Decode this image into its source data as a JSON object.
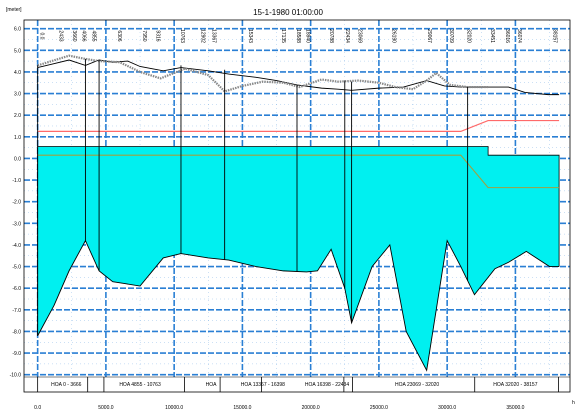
{
  "chart_data": {
    "type": "line",
    "title": "15-1-1980 01:00:00",
    "ylabel": "[meter]",
    "xlabel": "",
    "xunit_label": "h",
    "ylim": [
      -10.8,
      6.4
    ],
    "xlim": [
      -1000,
      39000
    ],
    "grid": true,
    "y_ticks": [
      6.0,
      5.0,
      4.0,
      3.0,
      2.0,
      1.0,
      0.0,
      -1.0,
      -2.0,
      -3.0,
      -4.0,
      -5.0,
      -6.0,
      -7.0,
      -8.0,
      -9.0,
      -10.0
    ],
    "y_tick_labels": [
      "6.0",
      "5.0",
      "4.0",
      "3.0",
      "2.0",
      "1.0",
      "0.0",
      "-1.0",
      "-2.0",
      "-3.0",
      "-4.0",
      "-5.0",
      "-6.0",
      "-7.0",
      "-8.0",
      "-9.0",
      "-10.0"
    ],
    "x_ticks": [
      0,
      5000,
      10000,
      15000,
      20000,
      25000,
      30000,
      35000
    ],
    "x_tick_labels": [
      "0.0",
      "5000.0",
      "10000.0",
      "15000.0",
      "20000.0",
      "25000.0",
      "30000.0",
      "35000.0"
    ],
    "colors": {
      "grid": "#2a7fd4",
      "bed_fill": "#00f0f0",
      "bed_line": "#000000",
      "bank_line": "#000000",
      "dotted_line": "#888888",
      "red_line": "#ff6a6a",
      "olive_line": "#a0a040"
    },
    "series": [
      {
        "key": "bed",
        "x": [
          0,
          1200,
          2300,
          3500,
          4500,
          5500,
          6500,
          7500,
          9200,
          10500,
          12500,
          14000,
          16000,
          18000,
          19700,
          20500,
          21500,
          22500,
          23000,
          24500,
          25800,
          27000,
          28500,
          30000,
          31000,
          32000,
          33500,
          34500,
          35800,
          37500,
          38200
        ],
        "y": [
          -8.2,
          -6.8,
          -5.2,
          -3.8,
          -5.2,
          -5.7,
          -5.8,
          -5.9,
          -4.6,
          -4.4,
          -4.6,
          -4.7,
          -5.0,
          -5.2,
          -5.25,
          -5.2,
          -4.2,
          -6.0,
          -7.6,
          -5.0,
          -4.0,
          -8.0,
          -9.8,
          -3.8,
          -5.0,
          -6.3,
          -5.1,
          -4.8,
          -4.3,
          -5.0,
          -5.0
        ]
      },
      {
        "key": "bank",
        "x": [
          0,
          1000,
          2300,
          3500,
          4500,
          5500,
          6600,
          7500,
          9200,
          10500,
          12500,
          14000,
          16000,
          17500,
          19000,
          20800,
          22000,
          23000,
          25000,
          26800,
          28500,
          29800,
          31000,
          33000,
          34500,
          35700,
          37400,
          38200
        ],
        "y": [
          4.2,
          4.35,
          4.55,
          4.3,
          4.55,
          4.45,
          4.5,
          4.25,
          4.05,
          4.2,
          4.05,
          3.9,
          3.75,
          3.6,
          3.4,
          3.25,
          3.2,
          3.15,
          3.25,
          3.3,
          3.6,
          3.35,
          3.3,
          3.3,
          3.3,
          3.05,
          2.95,
          2.95
        ]
      },
      {
        "key": "dotted",
        "x": [
          0,
          2300,
          3500,
          4500,
          6000,
          7500,
          9000,
          10800,
          12500,
          13700,
          15000,
          16500,
          18000,
          19200,
          20800,
          22000,
          23500,
          25000,
          26200,
          27500,
          28500,
          29200,
          30200,
          31500,
          33000
        ],
        "y": [
          4.3,
          4.75,
          4.6,
          4.5,
          4.45,
          4.0,
          3.7,
          4.15,
          3.85,
          3.1,
          3.35,
          3.55,
          3.5,
          3.3,
          3.65,
          3.55,
          3.6,
          3.5,
          3.3,
          3.2,
          3.6,
          3.95,
          3.4,
          3.3,
          3.3
        ]
      },
      {
        "key": "red",
        "x": [
          0,
          29500,
          31000,
          33000,
          38200
        ],
        "y": [
          1.25,
          1.25,
          1.25,
          1.75,
          1.75
        ]
      },
      {
        "key": "olive",
        "x": [
          0,
          31000,
          33000,
          38200
        ],
        "y": [
          0.15,
          0.15,
          -1.35,
          -1.35
        ]
      }
    ],
    "top_rect": {
      "x0": 0,
      "x1": 33000,
      "y": 0.55
    },
    "top_rect_step": {
      "x": 33000,
      "y_from": 0.55,
      "y_to": 0.15
    },
    "right_end_x": 38200,
    "verticals": [
      {
        "x": 0,
        "y_top": 4.3
      },
      {
        "x": 3500,
        "y_top": 4.6
      },
      {
        "x": 4500,
        "y_top": 4.55
      },
      {
        "x": 10500,
        "y_top": 4.3
      },
      {
        "x": 13700,
        "y_top": 4.1
      },
      {
        "x": 19000,
        "y_top": 3.4
      },
      {
        "x": 22500,
        "y_top": 3.6
      },
      {
        "x": 23000,
        "y_top": 3.55
      },
      {
        "x": 31500,
        "y_top": 3.3
      }
    ],
    "station_labels": [
      {
        "x": 200,
        "text": "0.0"
      },
      {
        "x": 1600,
        "text": "2433"
      },
      {
        "x": 2600,
        "text": "3660"
      },
      {
        "x": 3300,
        "text": "4066"
      },
      {
        "x": 4000,
        "text": "4855"
      },
      {
        "x": 5900,
        "text": "6306"
      },
      {
        "x": 7700,
        "text": "7950"
      },
      {
        "x": 8700,
        "text": "9316"
      },
      {
        "x": 10500,
        "text": "10763"
      },
      {
        "x": 12000,
        "text": "12902"
      },
      {
        "x": 12800,
        "text": "13367"
      },
      {
        "x": 15500,
        "text": "15343"
      },
      {
        "x": 17900,
        "text": "17135"
      },
      {
        "x": 19000,
        "text": "18588"
      },
      {
        "x": 19700,
        "text": "18940"
      },
      {
        "x": 21400,
        "text": "20788"
      },
      {
        "x": 22600,
        "text": "22434"
      },
      {
        "x": 23500,
        "text": "23069"
      },
      {
        "x": 26000,
        "text": "26190"
      },
      {
        "x": 28600,
        "text": "29067"
      },
      {
        "x": 30200,
        "text": "30709"
      },
      {
        "x": 31500,
        "text": "32020"
      },
      {
        "x": 33200,
        "text": "33451"
      },
      {
        "x": 34300,
        "text": "36016"
      },
      {
        "x": 35200,
        "text": "36074"
      },
      {
        "x": 37800,
        "text": "38157"
      }
    ],
    "bottom_labels": [
      {
        "x": 2100,
        "text": "HOA  0 - 3666"
      },
      {
        "x": 7500,
        "text": "HOA  4855 - 10763"
      },
      {
        "x": 12700,
        "text": "HOA"
      },
      {
        "x": 16500,
        "text": "HOA  13367 - 16398"
      },
      {
        "x": 21200,
        "text": "HOA  16398 - 22434"
      },
      {
        "x": 27800,
        "text": "HOA  23069 - 32020"
      },
      {
        "x": 35000,
        "text": "HOA  32020 - 38157"
      }
    ],
    "bottom_ticks": [
      0,
      3666,
      4855,
      10763,
      13367,
      16398,
      22434,
      23069,
      32020,
      38157
    ]
  }
}
